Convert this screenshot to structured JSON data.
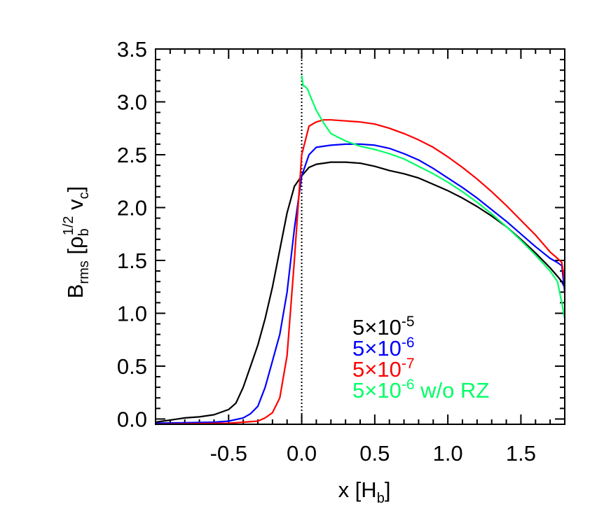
{
  "chart_data": {
    "type": "line",
    "xlabel": {
      "main": "x [H",
      "sub": "b",
      "tail": "]"
    },
    "ylabel": {
      "main": "B",
      "sub1": "rms",
      "mid": " [ρ",
      "sub2": "b",
      "sup": "1/2",
      "tail": " v",
      "sub3": "c",
      "end": "]"
    },
    "xlim": [
      -1.0,
      1.8
    ],
    "ylim": [
      -0.05,
      3.5
    ],
    "xticks": [
      -0.5,
      0.0,
      0.5,
      1.0,
      1.5
    ],
    "xtick_labels": [
      "-0.5",
      "0.0",
      "0.5",
      "1.0",
      "1.5"
    ],
    "yticks": [
      0.0,
      0.5,
      1.0,
      1.5,
      2.0,
      2.5,
      3.0,
      3.5
    ],
    "ytick_labels": [
      "0.0",
      "0.5",
      "1.0",
      "1.5",
      "2.0",
      "2.5",
      "3.0",
      "3.5"
    ],
    "vline_x": 0.0,
    "legend_placement": "bottom-right",
    "series": [
      {
        "name": "5×10-5",
        "legend": {
          "base": "5×10",
          "sup": "-5",
          "suffix": ""
        },
        "color": "#000000",
        "x": [
          -1.0,
          -0.9,
          -0.8,
          -0.7,
          -0.6,
          -0.5,
          -0.45,
          -0.4,
          -0.35,
          -0.3,
          -0.25,
          -0.2,
          -0.15,
          -0.1,
          -0.05,
          0.0,
          0.05,
          0.1,
          0.2,
          0.3,
          0.4,
          0.5,
          0.6,
          0.7,
          0.8,
          0.9,
          1.0,
          1.1,
          1.2,
          1.3,
          1.4,
          1.5,
          1.6,
          1.7,
          1.75,
          1.78,
          1.8
        ],
        "y": [
          -0.03,
          -0.01,
          0.01,
          0.02,
          0.04,
          0.09,
          0.15,
          0.3,
          0.5,
          0.7,
          0.95,
          1.25,
          1.6,
          1.95,
          2.2,
          2.3,
          2.38,
          2.41,
          2.43,
          2.43,
          2.42,
          2.39,
          2.35,
          2.32,
          2.28,
          2.22,
          2.16,
          2.09,
          2.01,
          1.92,
          1.82,
          1.7,
          1.57,
          1.43,
          1.35,
          1.3,
          1.24
        ]
      },
      {
        "name": "5×10-6",
        "legend": {
          "base": "5×10",
          "sup": "-6",
          "suffix": ""
        },
        "color": "#0000ff",
        "x": [
          -1.0,
          -0.6,
          -0.5,
          -0.4,
          -0.35,
          -0.3,
          -0.25,
          -0.2,
          -0.15,
          -0.1,
          -0.05,
          0.0,
          0.05,
          0.1,
          0.2,
          0.3,
          0.4,
          0.5,
          0.6,
          0.7,
          0.8,
          0.9,
          1.0,
          1.1,
          1.2,
          1.3,
          1.4,
          1.5,
          1.6,
          1.7,
          1.75,
          1.78,
          1.8
        ],
        "y": [
          -0.04,
          -0.03,
          -0.02,
          0.01,
          0.05,
          0.12,
          0.3,
          0.55,
          0.8,
          1.2,
          1.8,
          2.3,
          2.5,
          2.57,
          2.59,
          2.6,
          2.6,
          2.59,
          2.56,
          2.51,
          2.45,
          2.37,
          2.28,
          2.19,
          2.09,
          1.98,
          1.87,
          1.75,
          1.63,
          1.52,
          1.48,
          1.45,
          1.2
        ]
      },
      {
        "name": "5×10-7",
        "legend": {
          "base": "5×10",
          "sup": "-7",
          "suffix": ""
        },
        "color": "#ff0000",
        "x": [
          -1.0,
          -0.5,
          -0.3,
          -0.25,
          -0.2,
          -0.15,
          -0.1,
          -0.05,
          0.0,
          0.05,
          0.1,
          0.15,
          0.2,
          0.3,
          0.4,
          0.5,
          0.6,
          0.7,
          0.8,
          0.9,
          1.0,
          1.1,
          1.2,
          1.3,
          1.4,
          1.5,
          1.6,
          1.7,
          1.75,
          1.78,
          1.8
        ],
        "y": [
          -0.05,
          -0.04,
          -0.02,
          0.01,
          0.06,
          0.2,
          0.6,
          1.5,
          2.5,
          2.77,
          2.81,
          2.83,
          2.83,
          2.82,
          2.81,
          2.79,
          2.75,
          2.7,
          2.64,
          2.57,
          2.48,
          2.38,
          2.27,
          2.15,
          2.02,
          1.88,
          1.74,
          1.58,
          1.52,
          1.48,
          1.3
        ]
      },
      {
        "name": "5×10-6 w/o RZ",
        "legend": {
          "base": "5×10",
          "sup": "-6",
          "suffix": " w/o RZ"
        },
        "color": "#00ff66",
        "x": [
          0.0,
          0.01,
          0.02,
          0.04,
          0.06,
          0.1,
          0.15,
          0.2,
          0.3,
          0.4,
          0.5,
          0.6,
          0.7,
          0.8,
          0.9,
          1.0,
          1.1,
          1.2,
          1.3,
          1.4,
          1.5,
          1.6,
          1.7,
          1.75,
          1.78,
          1.8
        ],
        "y": [
          3.25,
          3.15,
          3.15,
          3.12,
          3.05,
          2.92,
          2.8,
          2.7,
          2.63,
          2.58,
          2.55,
          2.51,
          2.46,
          2.39,
          2.32,
          2.24,
          2.15,
          2.05,
          1.94,
          1.82,
          1.69,
          1.55,
          1.4,
          1.3,
          1.1,
          0.95
        ]
      }
    ]
  }
}
